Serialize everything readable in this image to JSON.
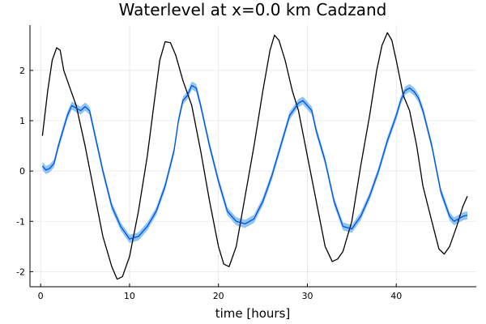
{
  "chart_data": {
    "type": "line",
    "title": "Waterlevel at x=0.0 km Cadzand",
    "xlabel": "time [hours]",
    "ylabel": "",
    "xlim": [
      -1.2,
      49
    ],
    "ylim": [
      -2.3,
      2.9
    ],
    "xticks": [
      0,
      10,
      20,
      30,
      40
    ],
    "yticks": [
      -2,
      -1,
      0,
      1,
      2
    ],
    "grid": true,
    "legend": "none",
    "series": [
      {
        "style": "line",
        "color": "#000000",
        "x": [
          0.2,
          0.8,
          1.3,
          1.8,
          2.2,
          2.6,
          3.2,
          4.0,
          5.0,
          6.0,
          7.0,
          8.0,
          8.6,
          9.2,
          10.0,
          11.0,
          12.0,
          12.8,
          13.4,
          14.0,
          14.6,
          15.2,
          16.0,
          17.0,
          18.0,
          19.0,
          20.0,
          20.6,
          21.2,
          22.0,
          23.0,
          24.0,
          25.0,
          25.8,
          26.3,
          26.8,
          27.5,
          28.3,
          29.0,
          30.0,
          31.0,
          32.0,
          32.8,
          33.4,
          34.0,
          35.0,
          36.0,
          37.0,
          37.8,
          38.4,
          39.0,
          39.5,
          40.0,
          40.8,
          41.5,
          42.3,
          43.0,
          44.0,
          44.8,
          45.4,
          46.0,
          46.8,
          47.5,
          48.0
        ],
        "y": [
          0.7,
          1.6,
          2.2,
          2.45,
          2.4,
          2.0,
          1.7,
          1.3,
          0.5,
          -0.4,
          -1.3,
          -1.9,
          -2.15,
          -2.1,
          -1.7,
          -0.8,
          0.3,
          1.4,
          2.2,
          2.57,
          2.55,
          2.3,
          1.8,
          1.3,
          0.4,
          -0.6,
          -1.5,
          -1.85,
          -1.9,
          -1.5,
          -0.5,
          0.5,
          1.6,
          2.4,
          2.7,
          2.6,
          2.2,
          1.6,
          1.2,
          0.3,
          -0.6,
          -1.5,
          -1.8,
          -1.75,
          -1.6,
          -1.0,
          0.1,
          1.1,
          2.0,
          2.5,
          2.75,
          2.6,
          2.2,
          1.5,
          1.2,
          0.5,
          -0.3,
          -1.0,
          -1.55,
          -1.65,
          -1.5,
          -1.1,
          -0.7,
          -0.5
        ]
      },
      {
        "style": "line-with-band",
        "color": "#0050e6",
        "band_color": "#8ec5f2",
        "band_halfwidth": 0.08,
        "x": [
          0.2,
          0.6,
          1.0,
          1.5,
          2.0,
          2.5,
          3.0,
          3.5,
          4.0,
          4.5,
          5.0,
          5.5,
          6.0,
          7.0,
          8.0,
          9.0,
          10.0,
          11.0,
          12.0,
          13.0,
          14.0,
          15.0,
          15.5,
          16.0,
          16.5,
          17.0,
          17.5,
          18.0,
          19.0,
          20.0,
          21.0,
          22.0,
          23.0,
          24.0,
          25.0,
          26.0,
          27.0,
          28.0,
          29.0,
          29.5,
          30.0,
          30.5,
          31.0,
          32.0,
          33.0,
          34.0,
          35.0,
          36.0,
          37.0,
          38.0,
          39.0,
          40.0,
          40.5,
          41.0,
          41.5,
          42.0,
          42.5,
          43.0,
          44.0,
          45.0,
          46.0,
          46.5,
          47.0,
          47.5,
          48.0
        ],
        "y": [
          0.1,
          0.02,
          0.05,
          0.15,
          0.5,
          0.8,
          1.1,
          1.3,
          1.25,
          1.2,
          1.28,
          1.2,
          0.8,
          0.0,
          -0.7,
          -1.1,
          -1.35,
          -1.3,
          -1.1,
          -0.8,
          -0.3,
          0.4,
          1.0,
          1.4,
          1.5,
          1.7,
          1.65,
          1.3,
          0.5,
          -0.2,
          -0.8,
          -1.0,
          -1.05,
          -0.95,
          -0.6,
          -0.1,
          0.5,
          1.1,
          1.35,
          1.4,
          1.3,
          1.2,
          0.8,
          0.2,
          -0.6,
          -1.1,
          -1.15,
          -0.9,
          -0.5,
          0.0,
          0.6,
          1.1,
          1.4,
          1.6,
          1.65,
          1.58,
          1.45,
          1.2,
          0.5,
          -0.4,
          -0.9,
          -1.0,
          -0.95,
          -0.9,
          -0.88
        ]
      }
    ]
  }
}
